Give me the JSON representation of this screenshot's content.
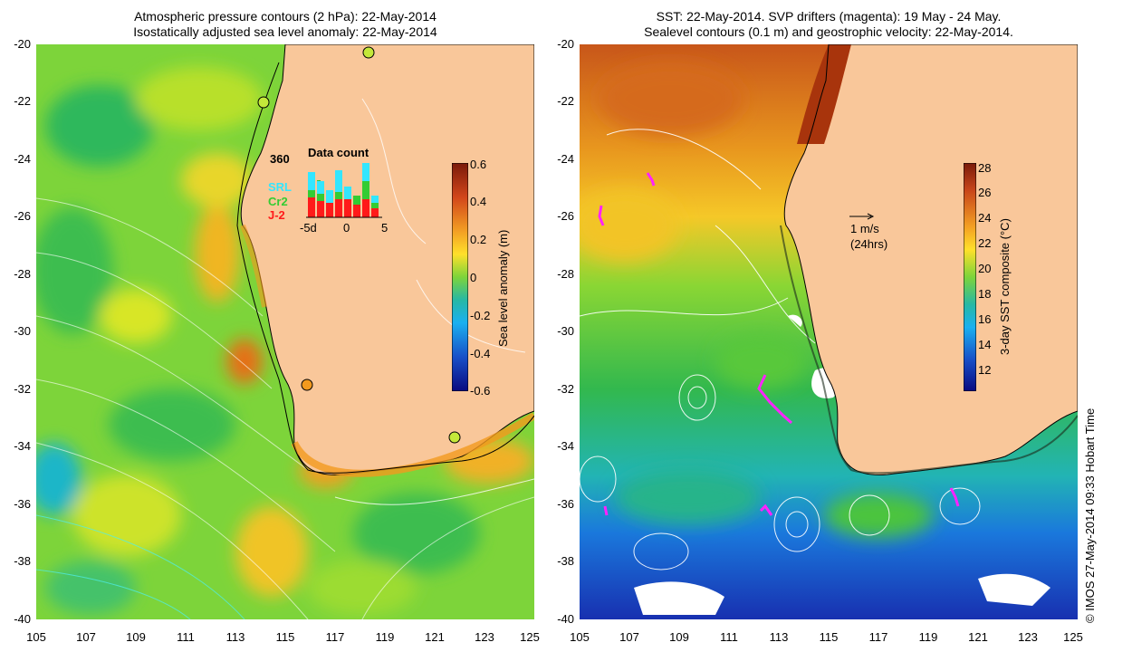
{
  "left_panel": {
    "title_line1": "Atmospheric pressure contours (2 hPa): 22-May-2014",
    "title_line2": "Isostatically adjusted sea level anomaly: 22-May-2014",
    "colorbar": {
      "label": "Sea level anomaly (m)",
      "ticks": [
        "0.6",
        "0.4",
        "0.2",
        "0",
        "-0.2",
        "-0.4",
        "-0.6"
      ]
    },
    "inset": {
      "title": "Data count",
      "max_count": "360",
      "series": [
        {
          "name": "SRL",
          "color": "#33e6ff"
        },
        {
          "name": "Cr2",
          "color": "#33cc33"
        },
        {
          "name": "J-2",
          "color": "#ff1a1a"
        }
      ],
      "xticks": [
        "-5d",
        "0",
        "5"
      ]
    }
  },
  "right_panel": {
    "title_line1": "SST: 22-May-2014. SVP drifters (magenta): 19 May - 24 May.",
    "title_line2": "Sealevel contours (0.1 m) and geostrophic velocity: 22-May-2014.",
    "colorbar": {
      "label": "3-day SST composite (°C)",
      "ticks": [
        "28",
        "26",
        "24",
        "22",
        "20",
        "18",
        "16",
        "14",
        "12"
      ]
    },
    "arrow_legend": {
      "speed": "1 m/s",
      "period": "(24hrs)"
    }
  },
  "axes": {
    "yticks": [
      "-20",
      "-22",
      "-24",
      "-26",
      "-28",
      "-30",
      "-32",
      "-34",
      "-36",
      "-38",
      "-40"
    ],
    "xticks": [
      "105",
      "107",
      "109",
      "111",
      "113",
      "115",
      "117",
      "119",
      "121",
      "123",
      "125"
    ]
  },
  "copyright": "© IMOS 27-May-2014 09:33 Hobart Time",
  "colors": {
    "land": "#f9c79a",
    "ocean_sla_base": "#79d236",
    "drifter": "#ff22ff"
  }
}
